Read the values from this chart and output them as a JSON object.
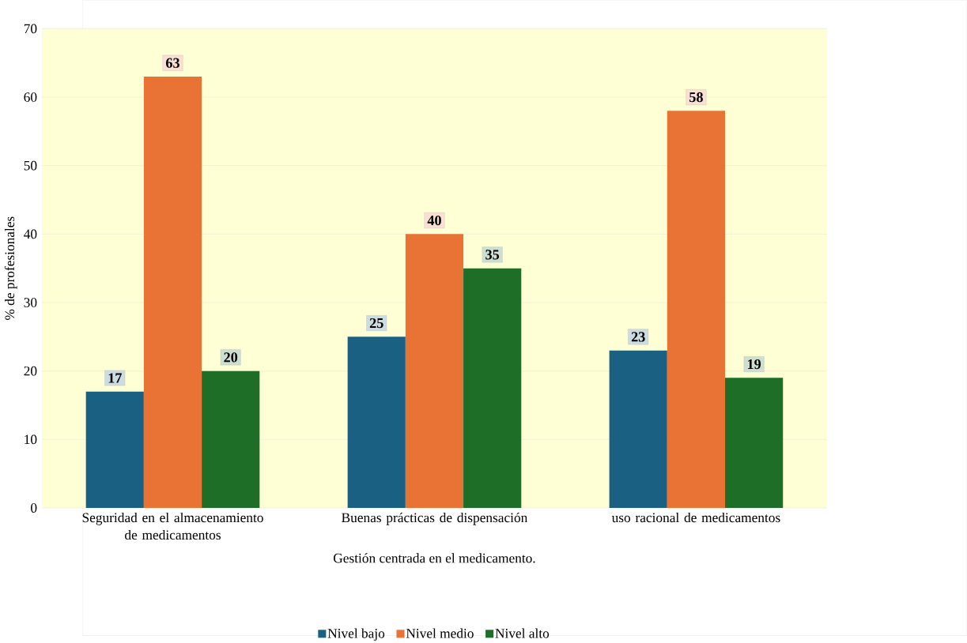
{
  "chart_data": {
    "type": "bar",
    "ylabel": "% de profesionales",
    "xlabel": "Gestión centrada en el medicamento.",
    "categories": [
      "Seguridad en el almacenamiento de medicamentos",
      "Buenas prácticas de dispensación",
      "uso racional de medicamentos"
    ],
    "series": [
      {
        "name": "Nivel bajo",
        "color": "#1a6082",
        "values": [
          17,
          25,
          23
        ]
      },
      {
        "name": "Nivel medio",
        "color": "#e87334",
        "values": [
          63,
          40,
          58
        ]
      },
      {
        "name": "Nivel alto",
        "color": "#1e6e28",
        "values": [
          20,
          35,
          19
        ]
      }
    ],
    "ylim": [
      0,
      70
    ],
    "yticks": [
      0,
      10,
      20,
      30,
      40,
      50,
      60,
      70
    ],
    "grid": "y",
    "legend": "bottom",
    "data_labels": true
  }
}
